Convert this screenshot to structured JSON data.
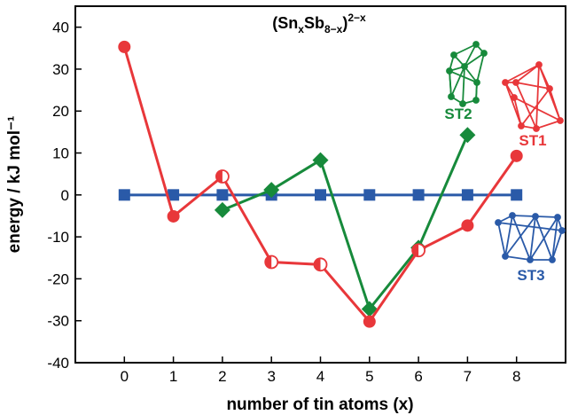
{
  "chart_data": {
    "type": "line",
    "title_parts": [
      "(Sn",
      "x",
      "Sb",
      "8−x",
      ")",
      "2−x"
    ],
    "xlabel": "number of tin atoms (x)",
    "ylabel": "energy / kJ mol⁻¹",
    "xlim": [
      -1,
      9
    ],
    "ylim": [
      -40,
      45
    ],
    "xticks": [
      0,
      1,
      2,
      3,
      4,
      5,
      6,
      7,
      8
    ],
    "yticks": [
      -40,
      -30,
      -20,
      -10,
      0,
      10,
      20,
      30,
      40
    ],
    "grid": false,
    "series": [
      {
        "name": "ST1",
        "color": "#e8373a",
        "marker": "circle",
        "x": [
          0,
          1,
          2,
          3,
          4,
          5,
          6,
          7,
          8
        ],
        "y": [
          35.3,
          -5.1,
          4.4,
          -16.0,
          -16.6,
          -30.2,
          -13.2,
          -7.3,
          9.3
        ],
        "marker_fill": [
          "full",
          "full",
          "half",
          "half",
          "half",
          "full",
          "half",
          "full",
          "full"
        ]
      },
      {
        "name": "ST2",
        "color": "#178a3b",
        "marker": "diamond",
        "x": [
          2,
          3,
          4,
          5,
          6,
          7
        ],
        "y": [
          -3.6,
          1.2,
          8.3,
          -27.2,
          -12.6,
          14.3
        ]
      },
      {
        "name": "ST3",
        "color": "#2a5aa8",
        "marker": "square",
        "x": [
          0,
          1,
          2,
          3,
          4,
          5,
          6,
          7,
          8
        ],
        "y": [
          0,
          0,
          0,
          0,
          0,
          0,
          0,
          0,
          0
        ]
      }
    ],
    "structure_labels": [
      {
        "text": "ST2",
        "color": "#178a3b",
        "icon": "st2-cluster-icon"
      },
      {
        "text": "ST1",
        "color": "#e8373a",
        "icon": "st1-cluster-icon"
      },
      {
        "text": "ST3",
        "color": "#2a5aa8",
        "icon": "st3-cluster-icon"
      }
    ]
  }
}
